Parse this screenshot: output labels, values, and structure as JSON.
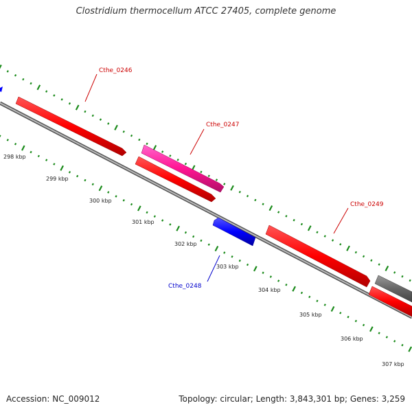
{
  "title": "Clostridium thermocellum ATCC 27405, complete genome",
  "footer": {
    "accession": "Accession: NC_009012",
    "topology": "Topology: circular; Length: 3,843,301 bp; Genes: 3,259"
  },
  "genes": [
    {
      "id": "Cthe_0246",
      "label": "Cthe_0246",
      "strand": "forward",
      "color": "#ff0000"
    },
    {
      "id": "Cthe_0247",
      "label": "Cthe_0247",
      "strand": "forward",
      "color": "#ff1493"
    },
    {
      "id": "Cthe_0248",
      "label": "Cthe_0248",
      "strand": "reverse",
      "color": "#0000ff"
    },
    {
      "id": "Cthe_0249",
      "label": "Cthe_0249",
      "strand": "forward",
      "color": "#ff0000"
    }
  ],
  "ticks": [
    "298 kbp",
    "299 kbp",
    "300 kbp",
    "301 kbp",
    "302 kbp",
    "303 kbp",
    "304 kbp",
    "305 kbp",
    "306 kbp",
    "307 kbp"
  ],
  "colors": {
    "forward_gene": "#ff0000",
    "reverse_gene": "#0000ff",
    "backbone": "#888888",
    "tick": "#1a8a1a",
    "forward_label": "#cc0000",
    "reverse_label": "#0000cc",
    "grey_feature": "#666666"
  }
}
